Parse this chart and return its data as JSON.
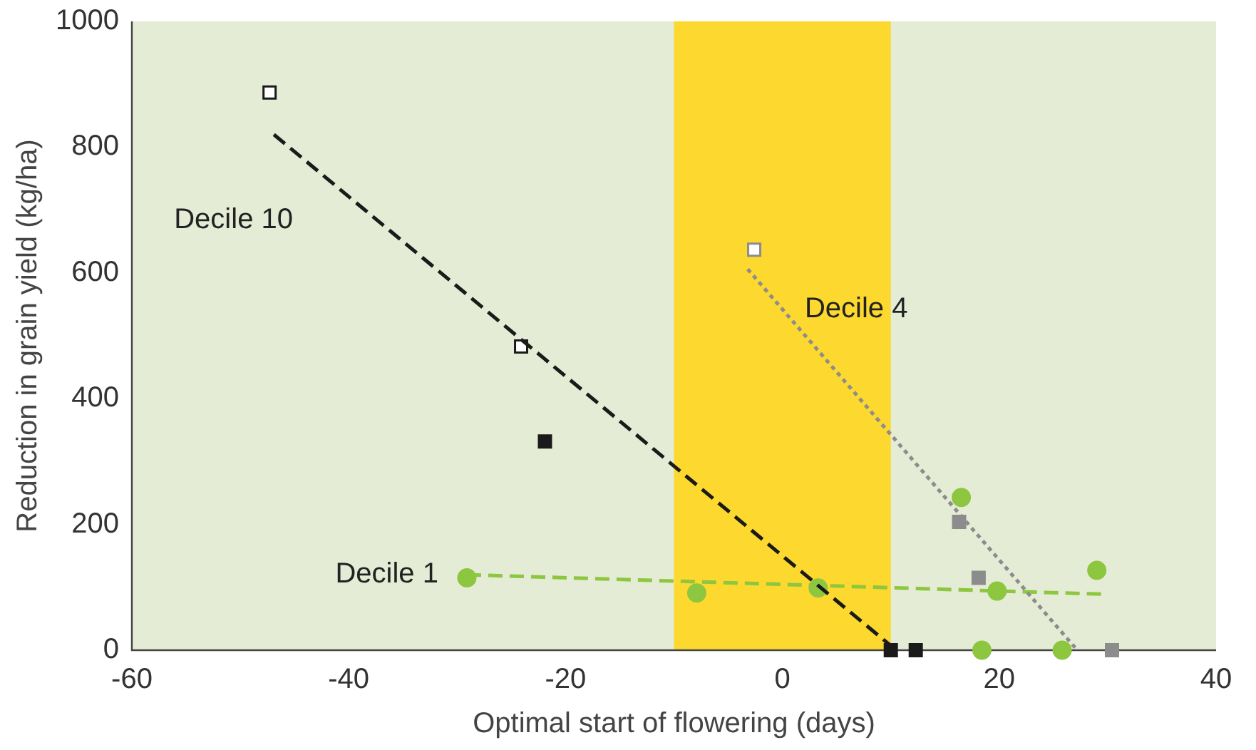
{
  "chart_data": {
    "type": "scatter",
    "xlabel": "Optimal start of flowering (days)",
    "ylabel": "Reduction in grain yield (kg/ha)",
    "xlim": [
      -60,
      40
    ],
    "xticks": [
      -60,
      -40,
      -20,
      0,
      20,
      40
    ],
    "ylim": [
      0,
      1000
    ],
    "yticks": [
      0,
      200,
      400,
      600,
      800,
      1000
    ],
    "grid": false,
    "legend": false,
    "bands": [
      {
        "axis": "x",
        "from": -10,
        "to": 10,
        "color": "#fdd82e"
      }
    ],
    "series": [
      {
        "type": "line",
        "name": "Decile 10",
        "color": "#1a1a1a",
        "line_style": "dashed",
        "marker": "none",
        "x": [
          -46.9,
          10.5
        ],
        "values": [
          820,
          0
        ]
      },
      {
        "type": "line",
        "name": "Decile 4",
        "color": "#8c8c8c",
        "line_style": "dotted",
        "marker": "none",
        "x": [
          -3.2,
          27.2
        ],
        "values": [
          606,
          0
        ]
      },
      {
        "type": "line",
        "name": "Decile 1",
        "color": "#8dc63f",
        "line_style": "dashed",
        "marker": "none",
        "x": [
          -29.1,
          29.7
        ],
        "values": [
          120,
          89
        ]
      },
      {
        "color": "#1a1a1a",
        "marker": "square",
        "x": [
          -47.3,
          -24.1,
          -21.9,
          10,
          12.3
        ],
        "values": [
          887,
          483,
          332,
          0,
          0
        ],
        "colors": [
          "#ffffff",
          "#ffffff",
          "#1a1a1a",
          "#1a1a1a",
          "#1a1a1a"
        ]
      },
      {
        "color": "#8c8c8c",
        "marker": "square",
        "x": [
          -2.6,
          16.3,
          18.1,
          30.4
        ],
        "values": [
          637,
          204,
          115,
          0
        ],
        "colors": [
          "#ffffff",
          "#8c8c8c",
          "#8c8c8c",
          "#8c8c8c"
        ]
      },
      {
        "color": "#8dc63f",
        "marker": "circle",
        "x": [
          -29.1,
          -7.9,
          3.3,
          16.5,
          18.4,
          19.8,
          25.8,
          29
        ],
        "values": [
          115,
          91,
          99,
          243,
          0,
          94,
          0,
          127
        ],
        "colors": [
          "#8dc63f",
          "#8dc63f",
          "#8dc63f",
          "#8dc63f",
          "#8dc63f",
          "#8dc63f",
          "#8dc63f",
          "#8dc63f"
        ]
      }
    ]
  }
}
